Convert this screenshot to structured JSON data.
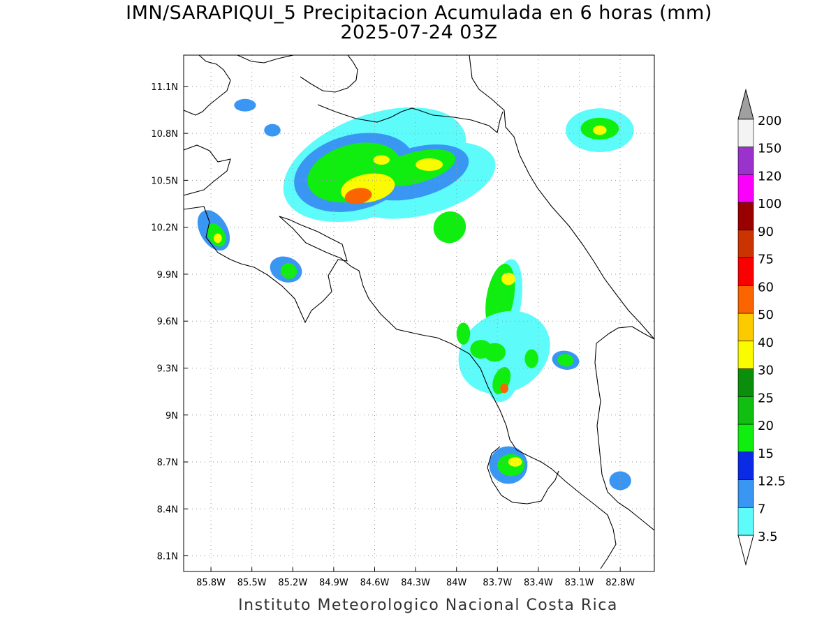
{
  "title": "IMN/SARAPIQUI_5 Precipitacion Acumulada en 6 horas (mm)",
  "subtitle": "2025-07-24 03Z",
  "credit": "Instituto Meteorologico Nacional Costa Rica",
  "chart_data": {
    "type": "heatmap",
    "map_region": "Costa Rica",
    "grid": true,
    "x_range": [
      -86.0,
      -82.55
    ],
    "y_range": [
      8.0,
      11.3
    ],
    "x_ticks": [
      {
        "lon": -85.8,
        "label": "85.8W"
      },
      {
        "lon": -85.5,
        "label": "85.5W"
      },
      {
        "lon": -85.2,
        "label": "85.2W"
      },
      {
        "lon": -84.9,
        "label": "84.9W"
      },
      {
        "lon": -84.6,
        "label": "84.6W"
      },
      {
        "lon": -84.3,
        "label": "84.3W"
      },
      {
        "lon": -84.0,
        "label": "84W"
      },
      {
        "lon": -83.7,
        "label": "83.7W"
      },
      {
        "lon": -83.4,
        "label": "83.4W"
      },
      {
        "lon": -83.1,
        "label": "83.1W"
      },
      {
        "lon": -82.8,
        "label": "82.8W"
      }
    ],
    "y_ticks": [
      {
        "lat": 11.1,
        "label": "11.1N"
      },
      {
        "lat": 10.8,
        "label": "10.8N"
      },
      {
        "lat": 10.5,
        "label": "10.5N"
      },
      {
        "lat": 10.2,
        "label": "10.2N"
      },
      {
        "lat": 9.9,
        "label": "9.9N"
      },
      {
        "lat": 9.6,
        "label": "9.6N"
      },
      {
        "lat": 9.3,
        "label": "9.3N"
      },
      {
        "lat": 9.0,
        "label": "9N"
      },
      {
        "lat": 8.7,
        "label": "8.7N"
      },
      {
        "lat": 8.4,
        "label": "8.4N"
      },
      {
        "lat": 8.1,
        "label": "8.1N"
      }
    ],
    "colorbar": [
      {
        "label": "3.5",
        "color": "#5efbfb"
      },
      {
        "label": "7",
        "color": "#3a96f3"
      },
      {
        "label": "12.5",
        "color": "#0a2ae6"
      },
      {
        "label": "15",
        "color": "#10ee10"
      },
      {
        "label": "20",
        "color": "#10bf10"
      },
      {
        "label": "25",
        "color": "#0b8e0b"
      },
      {
        "label": "30",
        "color": "#fbfb00"
      },
      {
        "label": "40",
        "color": "#fbcb00"
      },
      {
        "label": "50",
        "color": "#fb6500"
      },
      {
        "label": "60",
        "color": "#fb0000"
      },
      {
        "label": "75",
        "color": "#cb3300"
      },
      {
        "label": "90",
        "color": "#990000"
      },
      {
        "label": "100",
        "color": "#fb00fb"
      },
      {
        "label": "120",
        "color": "#9933cc"
      },
      {
        "label": "150",
        "color": "#f3f3f3"
      },
      {
        "label": "200",
        "color": "#a0a0a0"
      }
    ],
    "precip_cells": [
      {
        "lon": -84.6,
        "lat": 10.6,
        "rx": 0.7,
        "ry": 0.32,
        "rot": -20,
        "level": 0
      },
      {
        "lon": -84.25,
        "lat": 10.5,
        "rx": 0.55,
        "ry": 0.22,
        "rot": -15,
        "level": 0
      },
      {
        "lon": -84.75,
        "lat": 10.55,
        "rx": 0.45,
        "ry": 0.24,
        "rot": -15,
        "level": 1
      },
      {
        "lon": -84.3,
        "lat": 10.55,
        "rx": 0.4,
        "ry": 0.16,
        "rot": -15,
        "level": 1
      },
      {
        "lon": -84.75,
        "lat": 10.55,
        "rx": 0.35,
        "ry": 0.18,
        "rot": -15,
        "level": 3
      },
      {
        "lon": -84.3,
        "lat": 10.58,
        "rx": 0.3,
        "ry": 0.1,
        "rot": -15,
        "level": 3
      },
      {
        "lon": -84.65,
        "lat": 10.45,
        "rx": 0.2,
        "ry": 0.09,
        "rot": -10,
        "level": 6
      },
      {
        "lon": -84.72,
        "lat": 10.4,
        "rx": 0.1,
        "ry": 0.05,
        "rot": -10,
        "level": 8
      },
      {
        "lon": -84.2,
        "lat": 10.6,
        "rx": 0.1,
        "ry": 0.04,
        "rot": 0,
        "level": 6
      },
      {
        "lon": -84.55,
        "lat": 10.63,
        "rx": 0.06,
        "ry": 0.03,
        "rot": 0,
        "level": 6
      },
      {
        "lon": -84.05,
        "lat": 10.2,
        "rx": 0.12,
        "ry": 0.1,
        "rot": -30,
        "level": 3
      },
      {
        "lon": -83.65,
        "lat": 9.7,
        "rx": 0.12,
        "ry": 0.3,
        "rot": 10,
        "level": 0
      },
      {
        "lon": -83.68,
        "lat": 9.75,
        "rx": 0.1,
        "ry": 0.22,
        "rot": 10,
        "level": 3
      },
      {
        "lon": -83.62,
        "lat": 9.87,
        "rx": 0.05,
        "ry": 0.04,
        "rot": 0,
        "level": 6
      },
      {
        "lon": -83.65,
        "lat": 9.4,
        "rx": 0.35,
        "ry": 0.25,
        "rot": -30,
        "level": 0
      },
      {
        "lon": -83.72,
        "lat": 9.4,
        "rx": 0.08,
        "ry": 0.06,
        "rot": 0,
        "level": 3
      },
      {
        "lon": -83.66,
        "lat": 9.2,
        "rx": 0.1,
        "ry": 0.12,
        "rot": 20,
        "level": 0
      },
      {
        "lon": -83.67,
        "lat": 9.22,
        "rx": 0.06,
        "ry": 0.09,
        "rot": 20,
        "level": 3
      },
      {
        "lon": -83.65,
        "lat": 9.17,
        "rx": 0.03,
        "ry": 0.03,
        "rot": 0,
        "level": 8
      },
      {
        "lon": -83.62,
        "lat": 8.68,
        "rx": 0.14,
        "ry": 0.12,
        "rot": 0,
        "level": 1
      },
      {
        "lon": -83.6,
        "lat": 8.68,
        "rx": 0.1,
        "ry": 0.07,
        "rot": 0,
        "level": 3
      },
      {
        "lon": -83.57,
        "lat": 8.7,
        "rx": 0.05,
        "ry": 0.03,
        "rot": 0,
        "level": 6
      },
      {
        "lon": -85.78,
        "lat": 10.18,
        "rx": 0.1,
        "ry": 0.14,
        "rot": -30,
        "level": 1
      },
      {
        "lon": -85.76,
        "lat": 10.15,
        "rx": 0.06,
        "ry": 0.08,
        "rot": -30,
        "level": 3
      },
      {
        "lon": -85.75,
        "lat": 10.13,
        "rx": 0.03,
        "ry": 0.03,
        "rot": 0,
        "level": 6
      },
      {
        "lon": -85.25,
        "lat": 9.93,
        "rx": 0.12,
        "ry": 0.08,
        "rot": 20,
        "level": 1
      },
      {
        "lon": -85.23,
        "lat": 9.92,
        "rx": 0.06,
        "ry": 0.05,
        "rot": 20,
        "level": 3
      },
      {
        "lon": -82.95,
        "lat": 10.82,
        "rx": 0.25,
        "ry": 0.14,
        "rot": 0,
        "level": 0
      },
      {
        "lon": -82.95,
        "lat": 10.83,
        "rx": 0.14,
        "ry": 0.07,
        "rot": 0,
        "level": 3
      },
      {
        "lon": -82.95,
        "lat": 10.82,
        "rx": 0.05,
        "ry": 0.03,
        "rot": 0,
        "level": 6
      },
      {
        "lon": -83.2,
        "lat": 9.35,
        "rx": 0.1,
        "ry": 0.06,
        "rot": 10,
        "level": 1
      },
      {
        "lon": -83.2,
        "lat": 9.35,
        "rx": 0.06,
        "ry": 0.04,
        "rot": 10,
        "level": 3
      },
      {
        "lon": -83.45,
        "lat": 9.36,
        "rx": 0.05,
        "ry": 0.06,
        "rot": 0,
        "level": 3
      },
      {
        "lon": -82.8,
        "lat": 8.58,
        "rx": 0.08,
        "ry": 0.06,
        "rot": 0,
        "level": 1
      },
      {
        "lon": -85.55,
        "lat": 10.98,
        "rx": 0.08,
        "ry": 0.04,
        "rot": 0,
        "level": 1
      },
      {
        "lon": -85.35,
        "lat": 10.82,
        "rx": 0.06,
        "ry": 0.04,
        "rot": 0,
        "level": 1
      },
      {
        "lon": -83.95,
        "lat": 9.52,
        "rx": 0.05,
        "ry": 0.07,
        "rot": 0,
        "level": 3
      },
      {
        "lon": -83.82,
        "lat": 9.42,
        "rx": 0.08,
        "ry": 0.06,
        "rot": 0,
        "level": 3
      }
    ]
  }
}
